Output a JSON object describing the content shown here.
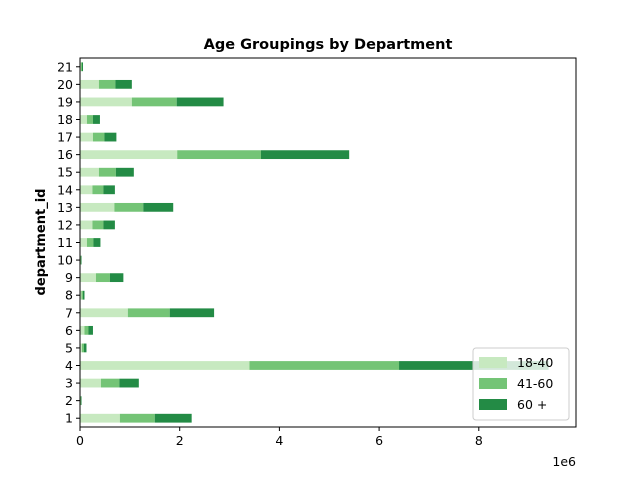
{
  "chart_data": {
    "type": "bar",
    "orientation": "horizontal",
    "stacked": true,
    "title": "Age Groupings by Department",
    "xlabel": "",
    "ylabel": "department_id",
    "x_scale_label": "1e6",
    "xlim": [
      0,
      9.95
    ],
    "x_ticks": [
      "0",
      "2",
      "4",
      "6",
      "8"
    ],
    "grid": false,
    "legend_position": "bottom-right",
    "categories": [
      "1",
      "2",
      "3",
      "4",
      "5",
      "6",
      "7",
      "8",
      "9",
      "10",
      "11",
      "12",
      "13",
      "14",
      "15",
      "16",
      "17",
      "18",
      "19",
      "20",
      "21"
    ],
    "series": [
      {
        "name": "18-40",
        "color": "#c7e9c0",
        "values": [
          0.8,
          0.01,
          0.42,
          3.4,
          0.04,
          0.09,
          0.96,
          0.03,
          0.32,
          0.01,
          0.14,
          0.25,
          0.69,
          0.25,
          0.38,
          1.95,
          0.26,
          0.14,
          1.04,
          0.38,
          0.02
        ]
      },
      {
        "name": "41-60",
        "color": "#74c476",
        "values": [
          0.7,
          0.01,
          0.37,
          3.0,
          0.04,
          0.08,
          0.84,
          0.03,
          0.28,
          0.01,
          0.13,
          0.22,
          0.58,
          0.22,
          0.34,
          1.68,
          0.23,
          0.12,
          0.9,
          0.33,
          0.02
        ]
      },
      {
        "name": "60 +",
        "color": "#238b45",
        "values": [
          0.74,
          0.01,
          0.39,
          3.0,
          0.05,
          0.09,
          0.89,
          0.03,
          0.27,
          0.01,
          0.14,
          0.23,
          0.6,
          0.23,
          0.36,
          1.77,
          0.24,
          0.14,
          0.94,
          0.33,
          0.02
        ]
      }
    ]
  }
}
